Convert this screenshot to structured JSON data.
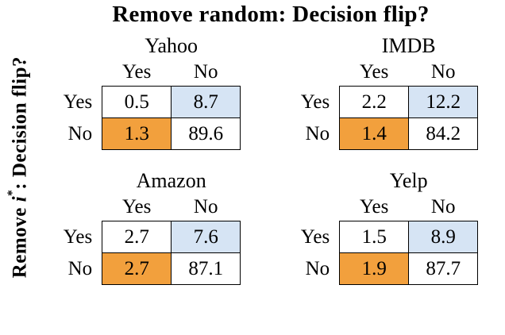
{
  "figure": {
    "title": "Remove random: Decision flip?",
    "y_label": {
      "prefix": "Remove ",
      "var": "i",
      "sup": "*",
      "suffix": ": Decision flip?"
    }
  },
  "colors": {
    "highlight_blue": "#D6E4F4",
    "highlight_orange": "#F2A03D",
    "border": "#000000"
  },
  "panels": [
    {
      "name": "Yahoo",
      "cols": [
        "Yes",
        "No"
      ],
      "rows": [
        "Yes",
        "No"
      ],
      "values": [
        [
          "0.5",
          "8.7"
        ],
        [
          "1.3",
          "89.6"
        ]
      ]
    },
    {
      "name": "IMDB",
      "cols": [
        "Yes",
        "No"
      ],
      "rows": [
        "Yes",
        "No"
      ],
      "values": [
        [
          "2.2",
          "12.2"
        ],
        [
          "1.4",
          "84.2"
        ]
      ]
    },
    {
      "name": "Amazon",
      "cols": [
        "Yes",
        "No"
      ],
      "rows": [
        "Yes",
        "No"
      ],
      "values": [
        [
          "2.7",
          "7.6"
        ],
        [
          "2.7",
          "87.1"
        ]
      ]
    },
    {
      "name": "Yelp",
      "cols": [
        "Yes",
        "No"
      ],
      "rows": [
        "Yes",
        "No"
      ],
      "values": [
        [
          "1.5",
          "8.9"
        ],
        [
          "1.9",
          "87.7"
        ]
      ]
    }
  ],
  "chart_data": [
    {
      "type": "table",
      "title": "Yahoo",
      "xlabel": "Remove random: Decision flip?",
      "ylabel": "Remove i*: Decision flip?",
      "columns": [
        "Yes",
        "No"
      ],
      "rows": [
        "Yes",
        "No"
      ],
      "values": [
        [
          0.5,
          8.7
        ],
        [
          1.3,
          89.6
        ]
      ],
      "cell_colors": [
        [
          "white",
          "blue"
        ],
        [
          "orange",
          "white"
        ]
      ]
    },
    {
      "type": "table",
      "title": "IMDB",
      "xlabel": "Remove random: Decision flip?",
      "ylabel": "Remove i*: Decision flip?",
      "columns": [
        "Yes",
        "No"
      ],
      "rows": [
        "Yes",
        "No"
      ],
      "values": [
        [
          2.2,
          12.2
        ],
        [
          1.4,
          84.2
        ]
      ],
      "cell_colors": [
        [
          "white",
          "blue"
        ],
        [
          "orange",
          "white"
        ]
      ]
    },
    {
      "type": "table",
      "title": "Amazon",
      "xlabel": "Remove random: Decision flip?",
      "ylabel": "Remove i*: Decision flip?",
      "columns": [
        "Yes",
        "No"
      ],
      "rows": [
        "Yes",
        "No"
      ],
      "values": [
        [
          2.7,
          7.6
        ],
        [
          2.7,
          87.1
        ]
      ],
      "cell_colors": [
        [
          "white",
          "blue"
        ],
        [
          "orange",
          "white"
        ]
      ]
    },
    {
      "type": "table",
      "title": "Yelp",
      "xlabel": "Remove random: Decision flip?",
      "ylabel": "Remove i*: Decision flip?",
      "columns": [
        "Yes",
        "No"
      ],
      "rows": [
        "Yes",
        "No"
      ],
      "values": [
        [
          1.5,
          8.9
        ],
        [
          1.9,
          87.7
        ]
      ],
      "cell_colors": [
        [
          "white",
          "blue"
        ],
        [
          "orange",
          "white"
        ]
      ]
    }
  ]
}
